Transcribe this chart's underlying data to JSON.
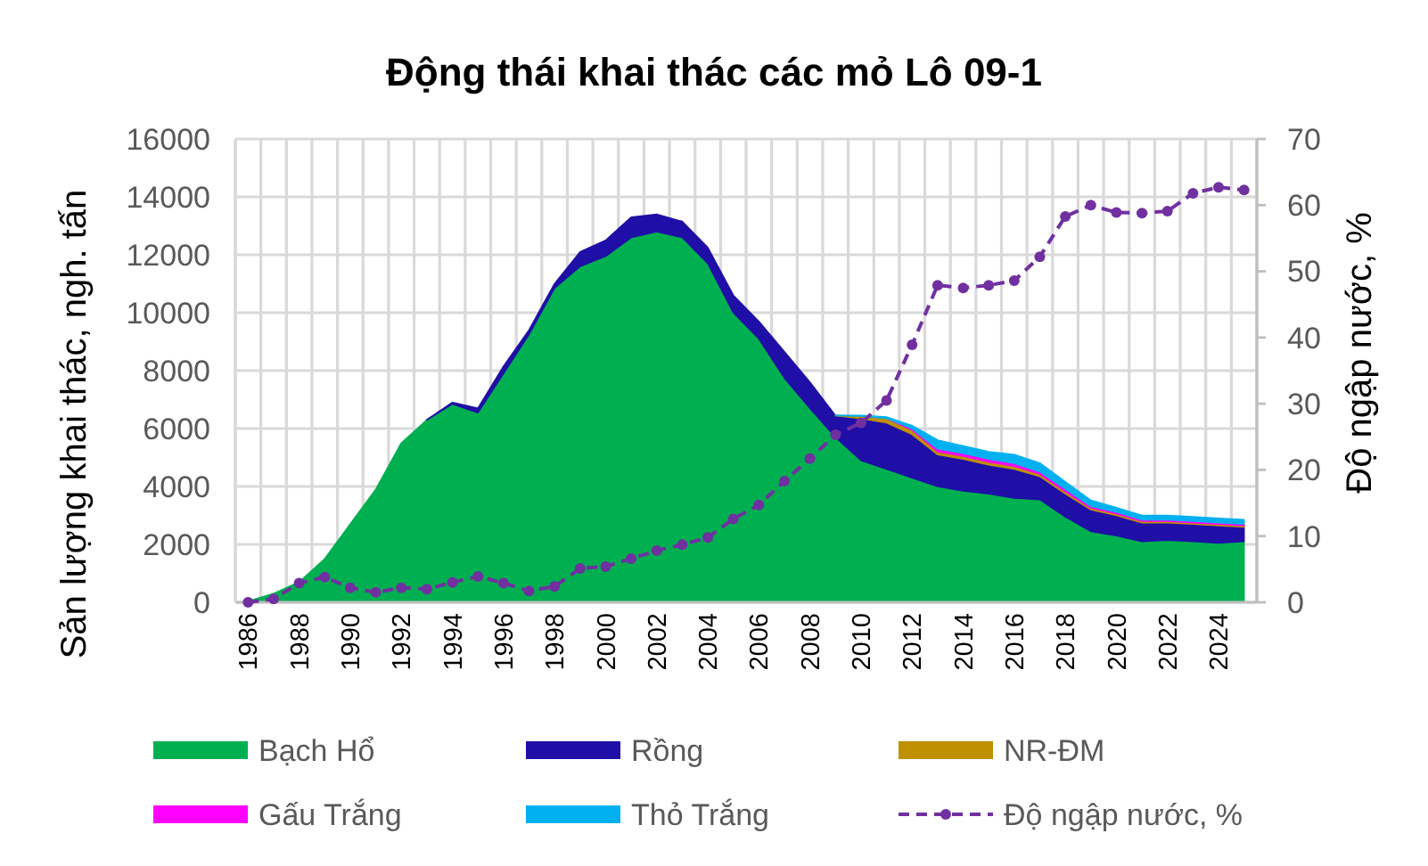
{
  "chart_data": {
    "type": "area",
    "title": "Động thái khai thác các mỏ Lô 09-1",
    "ylabel": "Sản lượng khai thác, ngh. tấn",
    "y2label": "Độ ngập nước, %",
    "categories": [
      "1986",
      null,
      "1988",
      null,
      "1990",
      null,
      "1992",
      null,
      "1994",
      null,
      "1996",
      null,
      "1998",
      null,
      "2000",
      null,
      "2002",
      null,
      "2004",
      null,
      "2006",
      null,
      "2008",
      null,
      "2010",
      null,
      "2012",
      null,
      "2014",
      null,
      "2016",
      null,
      "2018",
      null,
      "2020",
      null,
      "2022",
      null,
      "2024",
      null
    ],
    "stacked": true,
    "ylim": [
      0,
      16000
    ],
    "yticks": [
      0,
      2000,
      4000,
      6000,
      8000,
      10000,
      12000,
      14000,
      16000
    ],
    "y2lim": [
      0,
      70
    ],
    "y2ticks": [
      0,
      10,
      20,
      30,
      40,
      50,
      60,
      70
    ],
    "grid": true,
    "legend": "bottom",
    "series": [
      {
        "name": "Bạch Hổ",
        "color": "#00b050",
        "values": [
          40,
          300,
          700,
          1500,
          2700,
          3900,
          5500,
          6300,
          6850,
          6550,
          7900,
          9250,
          10850,
          11600,
          11950,
          12600,
          12800,
          12600,
          11700,
          10000,
          9100,
          7750,
          6700,
          5700,
          4900,
          4600,
          4300,
          4000,
          3850,
          3750,
          3600,
          3550,
          2950,
          2450,
          2300,
          2100,
          2150,
          2100,
          2050,
          2100
        ]
      },
      {
        "name": "Rồng",
        "color": "#1f0fa6",
        "values": [
          null,
          null,
          null,
          null,
          null,
          null,
          null,
          0,
          50,
          150,
          250,
          150,
          150,
          500,
          550,
          700,
          600,
          550,
          550,
          600,
          600,
          900,
          900,
          750,
          1450,
          1600,
          1500,
          1100,
          1100,
          1000,
          1000,
          800,
          800,
          750,
          700,
          650,
          600,
          600,
          600,
          500
        ]
      },
      {
        "name": "NR-ĐM",
        "color": "#bf9000",
        "values": [
          null,
          null,
          null,
          null,
          null,
          null,
          null,
          null,
          null,
          null,
          null,
          null,
          null,
          null,
          null,
          null,
          null,
          null,
          null,
          null,
          null,
          null,
          null,
          0,
          80,
          150,
          150,
          100,
          100,
          100,
          100,
          80,
          80,
          60,
          60,
          50,
          50,
          50,
          50,
          50
        ]
      },
      {
        "name": "Gấu Trắng",
        "color": "#ff00ff",
        "values": [
          null,
          null,
          null,
          null,
          null,
          null,
          null,
          null,
          null,
          null,
          null,
          null,
          null,
          null,
          null,
          null,
          null,
          null,
          null,
          null,
          null,
          null,
          null,
          null,
          null,
          0,
          50,
          100,
          100,
          100,
          100,
          80,
          80,
          60,
          60,
          50,
          50,
          50,
          50,
          50
        ]
      },
      {
        "name": "Thỏ Trắng",
        "color": "#00b0f0",
        "values": [
          null,
          null,
          null,
          null,
          null,
          null,
          null,
          null,
          null,
          null,
          null,
          null,
          null,
          null,
          null,
          null,
          null,
          null,
          null,
          null,
          null,
          null,
          null,
          0,
          20,
          50,
          100,
          300,
          250,
          250,
          300,
          300,
          250,
          200,
          150,
          150,
          150,
          150,
          150,
          150
        ]
      },
      {
        "name": "Độ ngập nước, %",
        "type": "line",
        "axis": "y2",
        "color": "#7030a0",
        "marker": "circle",
        "line_style": "dashed",
        "values": [
          0,
          0.5,
          2.9,
          3.8,
          2.2,
          1.5,
          2.2,
          2.0,
          3.0,
          3.9,
          2.9,
          1.7,
          2.4,
          5.1,
          5.4,
          6.6,
          7.8,
          8.7,
          9.8,
          12.6,
          14.7,
          18.3,
          21.7,
          25.3,
          27.1,
          30.5,
          38.9,
          47.9,
          47.5,
          47.9,
          48.6,
          52.2,
          58.3,
          60.0,
          58.9,
          58.8,
          59.1,
          61.8,
          62.7,
          62.3
        ]
      }
    ]
  }
}
